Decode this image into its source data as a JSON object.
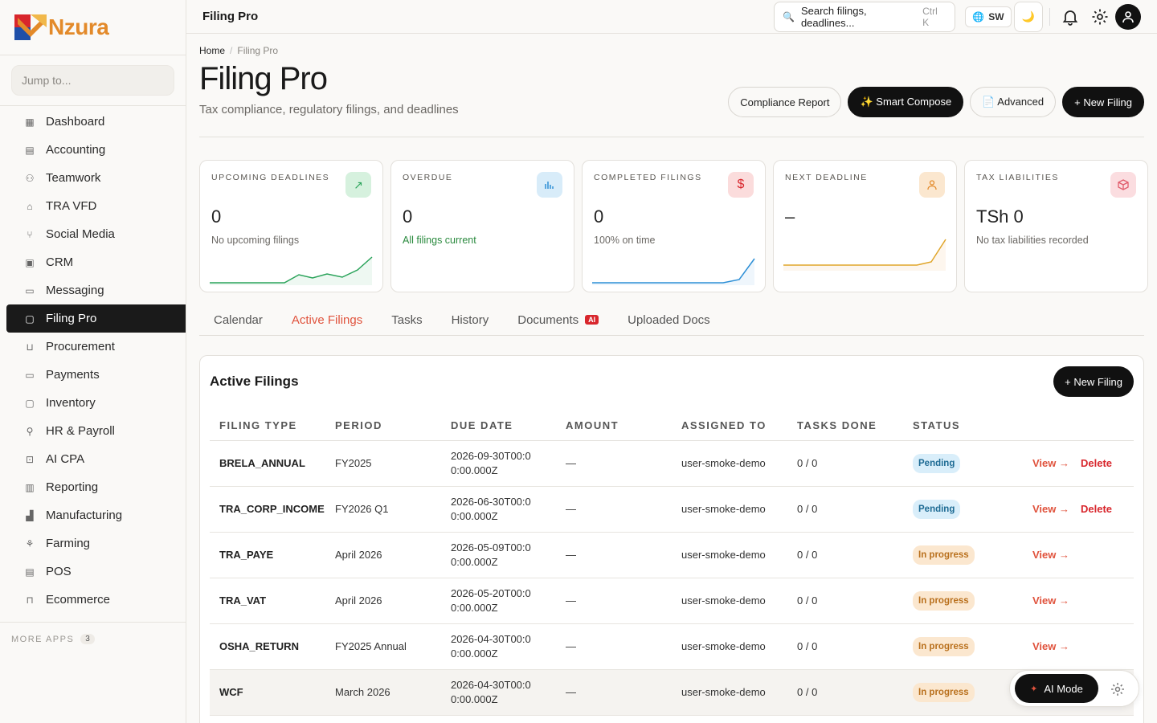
{
  "brand": {
    "name": "Nzura"
  },
  "sidebar": {
    "jump_placeholder": "Jump to...",
    "items": [
      {
        "label": "Dashboard",
        "icon": "grid-icon"
      },
      {
        "label": "Accounting",
        "icon": "ledger-icon"
      },
      {
        "label": "Teamwork",
        "icon": "people-icon"
      },
      {
        "label": "TRA VFD",
        "icon": "building-icon"
      },
      {
        "label": "Social Media",
        "icon": "share-icon"
      },
      {
        "label": "CRM",
        "icon": "contact-icon"
      },
      {
        "label": "Messaging",
        "icon": "chat-icon"
      },
      {
        "label": "Filing Pro",
        "icon": "folder-icon",
        "active": true
      },
      {
        "label": "Procurement",
        "icon": "cart-icon"
      },
      {
        "label": "Payments",
        "icon": "card-icon"
      },
      {
        "label": "Inventory",
        "icon": "box-icon"
      },
      {
        "label": "HR & Payroll",
        "icon": "user-plus-icon"
      },
      {
        "label": "AI CPA",
        "icon": "robot-icon"
      },
      {
        "label": "Reporting",
        "icon": "bar-chart-icon"
      },
      {
        "label": "Manufacturing",
        "icon": "factory-icon"
      },
      {
        "label": "Farming",
        "icon": "sprout-icon"
      },
      {
        "label": "POS",
        "icon": "receipt-icon"
      },
      {
        "label": "Ecommerce",
        "icon": "bag-icon"
      }
    ],
    "more_apps_label": "MORE APPS",
    "more_apps_count": "3"
  },
  "topbar": {
    "title": "Filing Pro",
    "search_text": "Search filings, deadlines...",
    "search_kbd": "Ctrl K",
    "lang": "SW"
  },
  "header": {
    "breadcrumb_home": "Home",
    "breadcrumb_sep": "/",
    "breadcrumb_current": "Filing Pro",
    "title": "Filing Pro",
    "subtitle": "Tax compliance, regulatory filings, and deadlines",
    "actions": {
      "compliance": "Compliance Report",
      "smart": "✨ Smart Compose",
      "advanced": "📄 Advanced",
      "new": "+ New Filing"
    }
  },
  "cards": [
    {
      "label": "UPCOMING DEADLINES",
      "value": "0",
      "sub": "No upcoming filings",
      "accent": "#2aa35a"
    },
    {
      "label": "OVERDUE",
      "value": "0",
      "sub": "All filings current",
      "accent": "#2d8fd6"
    },
    {
      "label": "COMPLETED FILINGS",
      "value": "0",
      "sub": "100% on time",
      "accent": "#e0533d"
    },
    {
      "label": "NEXT DEADLINE",
      "value": "–",
      "sub": "",
      "accent": "#e38a2a"
    },
    {
      "label": "TAX LIABILITIES",
      "value": "TSh 0",
      "sub": "No tax liabilities recorded",
      "accent": "#e05a6a"
    }
  ],
  "tabs": [
    {
      "label": "Calendar"
    },
    {
      "label": "Active Filings",
      "active": true
    },
    {
      "label": "Tasks"
    },
    {
      "label": "History"
    },
    {
      "label": "Documents",
      "badge": "AI"
    },
    {
      "label": "Uploaded Docs"
    }
  ],
  "panel": {
    "title": "Active Filings",
    "new_button": "+ New Filing",
    "columns": [
      "FILING TYPE",
      "PERIOD",
      "DUE DATE",
      "AMOUNT",
      "ASSIGNED TO",
      "TASKS DONE",
      "STATUS"
    ],
    "view_label": "View →",
    "delete_label": "Delete",
    "rows": [
      {
        "type": "BRELA_ANNUAL",
        "period": "FY2025",
        "due": "2026-09-30T00:00:00.000Z",
        "amount": "—",
        "assigned": "user-smoke-demo",
        "tasks": "0 / 0",
        "status": "Pending",
        "deletable": true
      },
      {
        "type": "TRA_CORP_INCOME",
        "period": "FY2026 Q1",
        "due": "2026-06-30T00:00:00.000Z",
        "amount": "—",
        "assigned": "user-smoke-demo",
        "tasks": "0 / 0",
        "status": "Pending",
        "deletable": true
      },
      {
        "type": "TRA_PAYE",
        "period": "April 2026",
        "due": "2026-05-09T00:00:00.000Z",
        "amount": "—",
        "assigned": "user-smoke-demo",
        "tasks": "0 / 0",
        "status": "In progress",
        "deletable": false
      },
      {
        "type": "TRA_VAT",
        "period": "April 2026",
        "due": "2026-05-20T00:00:00.000Z",
        "amount": "—",
        "assigned": "user-smoke-demo",
        "tasks": "0 / 0",
        "status": "In progress",
        "deletable": false
      },
      {
        "type": "OSHA_RETURN",
        "period": "FY2025 Annual",
        "due": "2026-04-30T00:00:00.000Z",
        "amount": "—",
        "assigned": "user-smoke-demo",
        "tasks": "0 / 0",
        "status": "In progress",
        "deletable": false
      },
      {
        "type": "WCF",
        "period": "March 2026",
        "due": "2026-04-30T00:00:00.000Z",
        "amount": "—",
        "assigned": "user-smoke-demo",
        "tasks": "0 / 0",
        "status": "In progress",
        "deletable": false
      }
    ]
  },
  "ai_float": {
    "label": "AI Mode"
  }
}
